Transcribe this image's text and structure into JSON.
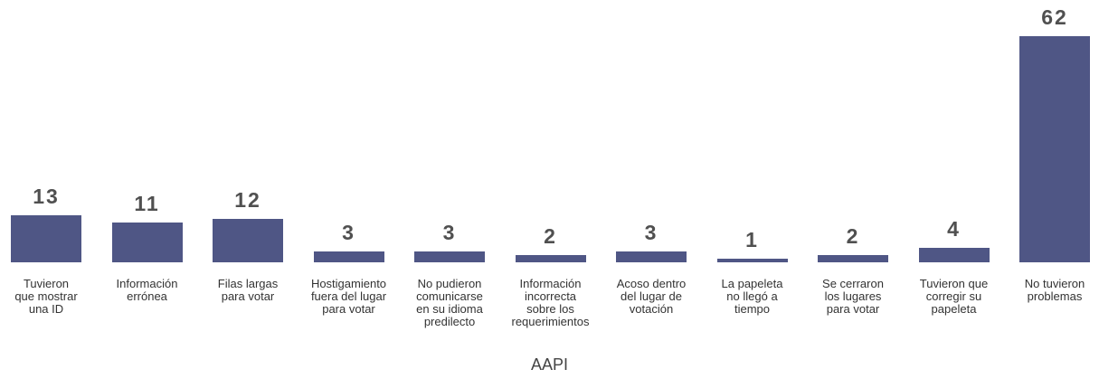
{
  "chart_data": {
    "type": "bar",
    "categories": [
      "Tuvieron\nque mostrar\nuna ID",
      "Información\nerrónea",
      "Filas largas\npara votar",
      "Hostigamiento\nfuera del lugar\npara votar",
      "No pudieron\ncomunicarse\nen su idioma\npredilecto",
      "Información\nincorrecta\nsobre los\nrequerimientos",
      "Acoso dentro\ndel lugar de\nvotación",
      "La papeleta\nno llegó a\ntiempo",
      "Se cerraron\nlos lugares\npara votar",
      "Tuvieron que\ncorregir su\npapeleta",
      "No tuvieron\nproblemas"
    ],
    "values": [
      13,
      11,
      12,
      3,
      3,
      2,
      3,
      1,
      2,
      4,
      62
    ],
    "color": "#4f5685",
    "x_label": "AAPI"
  }
}
